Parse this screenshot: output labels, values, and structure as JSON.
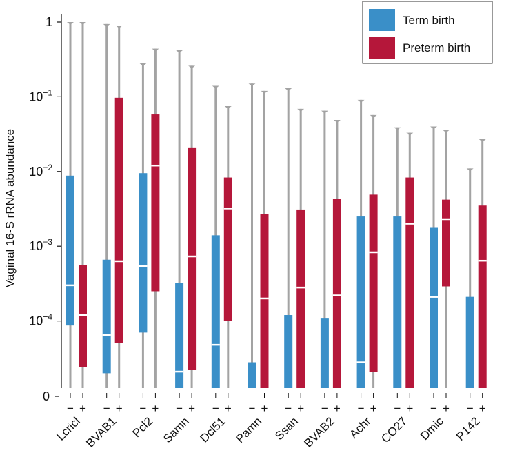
{
  "chart_data": {
    "type": "box",
    "title": "",
    "xlabel": "",
    "ylabel": "Vaginal 16-S rRNA abundance",
    "yscale": "log",
    "ylim": [
      0,
      1
    ],
    "yticks": [
      {
        "value": 1,
        "base": "1",
        "exp": ""
      },
      {
        "value": 0.1,
        "base": "10",
        "exp": "−1"
      },
      {
        "value": 0.01,
        "base": "10",
        "exp": "−2"
      },
      {
        "value": 0.001,
        "base": "10",
        "exp": "−3"
      },
      {
        "value": 0.0001,
        "base": "10",
        "exp": "−4"
      },
      {
        "value": 0,
        "base": "0",
        "exp": ""
      }
    ],
    "grid": false,
    "legend": {
      "position": "top-right",
      "entries": [
        {
          "label": "Term birth",
          "color": "#3a8fc8",
          "group": "-"
        },
        {
          "label": "Preterm birth",
          "color": "#b5173a",
          "group": "+"
        }
      ]
    },
    "group_signs": {
      "term": "−",
      "preterm": "+"
    },
    "colors": {
      "term": "#3a8fc8",
      "preterm": "#b5173a",
      "whisker": "#a3a3a3",
      "median": "#ffffff"
    },
    "categories": [
      "Lcricl",
      "BVAB1",
      "Pcl2",
      "Samn",
      "Dcl51",
      "Pamn",
      "Ssan",
      "BVAB2",
      "Achr",
      "CO27",
      "Dmic",
      "P142"
    ],
    "series": [
      {
        "name": "Term birth",
        "sign": "−",
        "boxes": [
          {
            "whisker_low": 0,
            "q1": 8.7e-05,
            "median": 0.0003,
            "q3": 0.0088,
            "whisker_high": 1.0
          },
          {
            "whisker_low": 0,
            "q1": 2e-05,
            "median": 6.5e-05,
            "q3": 0.00066,
            "whisker_high": 0.94
          },
          {
            "whisker_low": 0,
            "q1": 7e-05,
            "median": 0.00054,
            "q3": 0.0095,
            "whisker_high": 0.28
          },
          {
            "whisker_low": 0,
            "q1": 0,
            "median": 2.1e-05,
            "q3": 0.00032,
            "whisker_high": 0.42
          },
          {
            "whisker_low": 0,
            "q1": 0,
            "median": 4.8e-05,
            "q3": 0.0014,
            "whisker_high": 0.14
          },
          {
            "whisker_low": 0,
            "q1": 0,
            "median": 0,
            "q3": 2.8e-05,
            "whisker_high": 0.15
          },
          {
            "whisker_low": 0,
            "q1": 0,
            "median": 0,
            "q3": 0.00012,
            "whisker_high": 0.13
          },
          {
            "whisker_low": 0,
            "q1": 0,
            "median": 0,
            "q3": 0.00011,
            "whisker_high": 0.065
          },
          {
            "whisker_low": 0,
            "q1": 0,
            "median": 2.8e-05,
            "q3": 0.0025,
            "whisker_high": 0.091
          },
          {
            "whisker_low": 0,
            "q1": 0,
            "median": 0,
            "q3": 0.0025,
            "whisker_high": 0.039
          },
          {
            "whisker_low": 0,
            "q1": 0,
            "median": 0.00021,
            "q3": 0.0018,
            "whisker_high": 0.04
          },
          {
            "whisker_low": 0,
            "q1": 0,
            "median": 0,
            "q3": 0.00021,
            "whisker_high": 0.011
          }
        ]
      },
      {
        "name": "Preterm birth",
        "sign": "+",
        "boxes": [
          {
            "whisker_low": 0,
            "q1": 2.4e-05,
            "median": 0.00012,
            "q3": 0.00056,
            "whisker_high": 1.0
          },
          {
            "whisker_low": 0,
            "q1": 5.1e-05,
            "median": 0.00063,
            "q3": 0.097,
            "whisker_high": 0.9
          },
          {
            "whisker_low": 0,
            "q1": 0.00025,
            "median": 0.012,
            "q3": 0.058,
            "whisker_high": 0.44
          },
          {
            "whisker_low": 0,
            "q1": 2.2e-05,
            "median": 0.00073,
            "q3": 0.021,
            "whisker_high": 0.26
          },
          {
            "whisker_low": 0,
            "q1": 0.0001,
            "median": 0.0032,
            "q3": 0.0083,
            "whisker_high": 0.075
          },
          {
            "whisker_low": 0,
            "q1": 0,
            "median": 0.0002,
            "q3": 0.0027,
            "whisker_high": 0.12
          },
          {
            "whisker_low": 0,
            "q1": 0,
            "median": 0.00028,
            "q3": 0.0031,
            "whisker_high": 0.069
          },
          {
            "whisker_low": 0,
            "q1": 0,
            "median": 0.00022,
            "q3": 0.0043,
            "whisker_high": 0.049
          },
          {
            "whisker_low": 0,
            "q1": 2.1e-05,
            "median": 0.00083,
            "q3": 0.0049,
            "whisker_high": 0.057
          },
          {
            "whisker_low": 0,
            "q1": 0,
            "median": 0.002,
            "q3": 0.0083,
            "whisker_high": 0.033
          },
          {
            "whisker_low": 0,
            "q1": 0.00029,
            "median": 0.0023,
            "q3": 0.0042,
            "whisker_high": 0.036
          },
          {
            "whisker_low": 0,
            "q1": 0,
            "median": 0.00064,
            "q3": 0.0035,
            "whisker_high": 0.027
          }
        ]
      }
    ]
  }
}
